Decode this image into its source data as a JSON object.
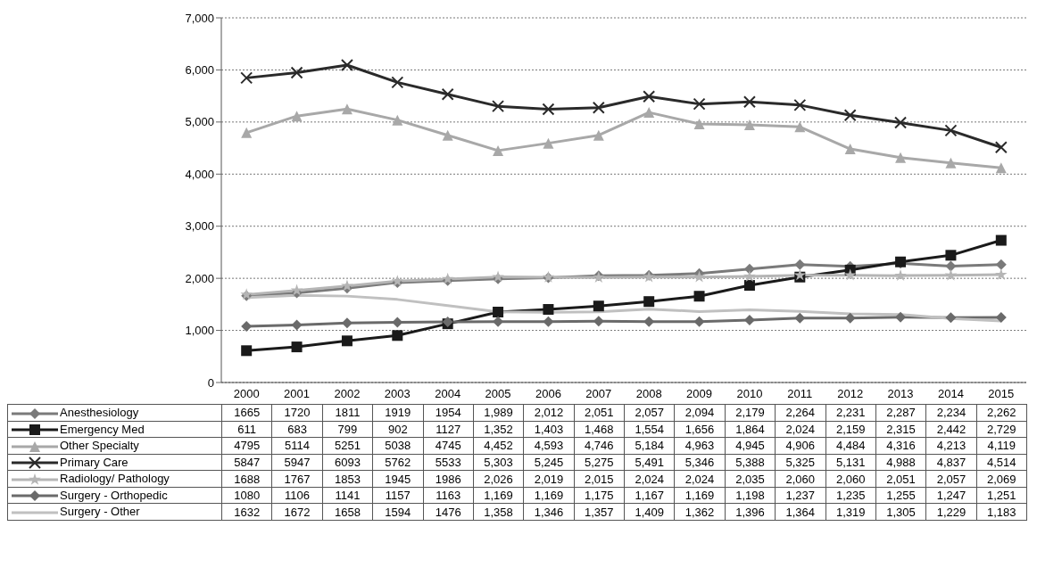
{
  "chart_data": {
    "type": "line",
    "categories": [
      "2000",
      "2001",
      "2002",
      "2003",
      "2004",
      "2005",
      "2006",
      "2007",
      "2008",
      "2009",
      "2010",
      "2011",
      "2012",
      "2013",
      "2014",
      "2015"
    ],
    "ylim": [
      0,
      7000
    ],
    "yticks": [
      0,
      {
        "value": 1000,
        "label": "1,000"
      },
      {
        "value": 2000,
        "label": "2,000"
      },
      {
        "value": 3000,
        "label": "3,000"
      },
      {
        "value": 4000,
        "label": "4,000"
      },
      {
        "value": 5000,
        "label": "5,000"
      },
      {
        "value": 6000,
        "label": "6,000"
      },
      {
        "value": 7000,
        "label": "7,000"
      }
    ],
    "grid": "y",
    "legend": "bottom",
    "line_style": "solid",
    "series": [
      {
        "name": "Anesthesiology",
        "color": "#7a7a7a",
        "marker": "diamond",
        "values": [
          1665,
          1720,
          1811,
          1919,
          1954,
          1989,
          2012,
          2051,
          2057,
          2094,
          2179,
          2264,
          2231,
          2287,
          2234,
          2262
        ],
        "value_labels": [
          "1665",
          "1720",
          "1811",
          "1919",
          "1954",
          "1,989",
          "2,012",
          "2,051",
          "2,057",
          "2,094",
          "2,179",
          "2,264",
          "2,231",
          "2,287",
          "2,234",
          "2,262"
        ]
      },
      {
        "name": "Emergency Med",
        "color": "#1a1a1a",
        "marker": "square",
        "values": [
          611,
          683,
          799,
          902,
          1127,
          1352,
          1403,
          1468,
          1554,
          1656,
          1864,
          2024,
          2159,
          2315,
          2442,
          2729
        ],
        "value_labels": [
          "611",
          "683",
          "799",
          "902",
          "1127",
          "1,352",
          "1,403",
          "1,468",
          "1,554",
          "1,656",
          "1,864",
          "2,024",
          "2,159",
          "2,315",
          "2,442",
          "2,729"
        ]
      },
      {
        "name": "Other Specialty",
        "color": "#a8a8a8",
        "marker": "triangle",
        "values": [
          4795,
          5114,
          5251,
          5038,
          4745,
          4452,
          4593,
          4746,
          5184,
          4963,
          4945,
          4906,
          4484,
          4316,
          4213,
          4119
        ],
        "value_labels": [
          "4795",
          "5114",
          "5251",
          "5038",
          "4745",
          "4,452",
          "4,593",
          "4,746",
          "5,184",
          "4,963",
          "4,945",
          "4,906",
          "4,484",
          "4,316",
          "4,213",
          "4,119"
        ]
      },
      {
        "name": "Primary Care",
        "color": "#2a2a2a",
        "marker": "cross",
        "values": [
          5847,
          5947,
          6093,
          5762,
          5533,
          5303,
          5245,
          5275,
          5491,
          5346,
          5388,
          5325,
          5131,
          4988,
          4837,
          4514
        ],
        "value_labels": [
          "5847",
          "5947",
          "6093",
          "5762",
          "5533",
          "5,303",
          "5,245",
          "5,275",
          "5,491",
          "5,346",
          "5,388",
          "5,325",
          "5,131",
          "4,988",
          "4,837",
          "4,514"
        ]
      },
      {
        "name": "Radiology/ Pathology",
        "color": "#b5b5b5",
        "marker": "star",
        "values": [
          1688,
          1767,
          1853,
          1945,
          1986,
          2026,
          2019,
          2015,
          2024,
          2024,
          2035,
          2060,
          2060,
          2051,
          2057,
          2069
        ],
        "value_labels": [
          "1688",
          "1767",
          "1853",
          "1945",
          "1986",
          "2,026",
          "2,019",
          "2,015",
          "2,024",
          "2,024",
          "2,035",
          "2,060",
          "2,060",
          "2,051",
          "2,057",
          "2,069"
        ]
      },
      {
        "name": "Surgery - Orthopedic",
        "color": "#6a6a6a",
        "marker": "diamond",
        "values": [
          1080,
          1106,
          1141,
          1157,
          1163,
          1169,
          1169,
          1175,
          1167,
          1169,
          1198,
          1237,
          1235,
          1255,
          1247,
          1251
        ],
        "value_labels": [
          "1080",
          "1106",
          "1141",
          "1157",
          "1163",
          "1,169",
          "1,169",
          "1,175",
          "1,167",
          "1,169",
          "1,198",
          "1,237",
          "1,235",
          "1,255",
          "1,247",
          "1,251"
        ]
      },
      {
        "name": "Surgery - Other",
        "color": "#c0c0c0",
        "marker": "none",
        "values": [
          1632,
          1672,
          1658,
          1594,
          1476,
          1358,
          1346,
          1357,
          1409,
          1362,
          1396,
          1364,
          1319,
          1305,
          1229,
          1183
        ],
        "value_labels": [
          "1632",
          "1672",
          "1658",
          "1594",
          "1476",
          "1,358",
          "1,346",
          "1,357",
          "1,409",
          "1,362",
          "1,396",
          "1,364",
          "1,319",
          "1,305",
          "1,229",
          "1,183"
        ]
      }
    ]
  }
}
